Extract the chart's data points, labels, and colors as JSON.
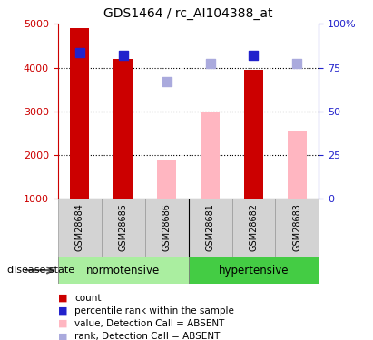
{
  "title": "GDS1464 / rc_AI104388_at",
  "samples": [
    "GSM28684",
    "GSM28685",
    "GSM28686",
    "GSM28681",
    "GSM28682",
    "GSM28683"
  ],
  "bar_bottom": 1000,
  "ylim": [
    1000,
    5000
  ],
  "ylim_right": [
    0,
    100
  ],
  "yticks_left": [
    1000,
    2000,
    3000,
    4000,
    5000
  ],
  "yticks_right": [
    0,
    25,
    50,
    75,
    100
  ],
  "red_bars": [
    4900,
    4200,
    null,
    null,
    3950,
    null
  ],
  "pink_bars": [
    null,
    null,
    1870,
    2980,
    null,
    2560
  ],
  "blue_squares": [
    4350,
    4270,
    null,
    null,
    4280,
    null
  ],
  "light_blue_squares": [
    null,
    null,
    3680,
    4100,
    null,
    4090
  ],
  "red_color": "#CC0000",
  "pink_color": "#FFB6C1",
  "blue_color": "#2222CC",
  "light_blue_color": "#AAAADD",
  "label_color_left": "#CC0000",
  "label_color_right": "#2222CC",
  "normotensive_color": "#AAEEA0",
  "hypertensive_color": "#44CC44",
  "sample_bg_color": "#D3D3D3",
  "legend_items": [
    {
      "label": "count",
      "color": "#CC0000"
    },
    {
      "label": "percentile rank within the sample",
      "color": "#2222CC"
    },
    {
      "label": "value, Detection Call = ABSENT",
      "color": "#FFB6C1"
    },
    {
      "label": "rank, Detection Call = ABSENT",
      "color": "#AAAADD"
    }
  ],
  "disease_state_label": "disease state",
  "title_fontsize": 10,
  "tick_fontsize": 8,
  "legend_fontsize": 8,
  "sample_fontsize": 7
}
